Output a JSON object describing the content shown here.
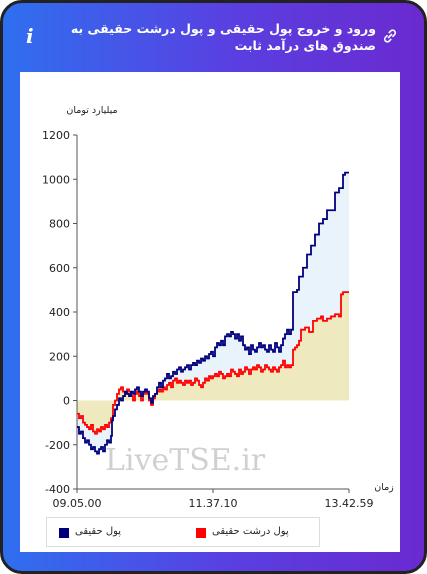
{
  "header": {
    "title": "ورود و خروج پول حقیقی و پول درشت حقیقی به صندوق های درآمد ثابت",
    "info_glyph": "i",
    "icon_left": "info-icon",
    "icon_right": "link-icon"
  },
  "colors": {
    "blue": "#00007f",
    "red": "#ff0000",
    "blue_fill": "#e8f3fb",
    "yellow_fill": "#efe8b8"
  },
  "watermark": "LiveTSE.ir",
  "chart_data": {
    "type": "line",
    "ylabel": "میلیارد تومان",
    "xlabel": "زمان",
    "ylim": [
      -400,
      1200
    ],
    "yticks": [
      -400,
      -200,
      0,
      200,
      400,
      600,
      800,
      1000,
      1200
    ],
    "xlim": [
      0,
      272
    ],
    "xticks": [
      {
        "x": 0,
        "label": "09.05.00"
      },
      {
        "x": 136,
        "label": "11.37.10"
      },
      {
        "x": 272,
        "label": "13.42.59"
      }
    ],
    "legend_position": "bottom",
    "series": [
      {
        "name": "پول حقیقی",
        "color": "#00007f",
        "points": [
          [
            0,
            -120
          ],
          [
            2,
            -150
          ],
          [
            4,
            -140
          ],
          [
            6,
            -170
          ],
          [
            8,
            -190
          ],
          [
            10,
            -180
          ],
          [
            12,
            -200
          ],
          [
            14,
            -220
          ],
          [
            16,
            -210
          ],
          [
            18,
            -230
          ],
          [
            20,
            -240
          ],
          [
            22,
            -220
          ],
          [
            24,
            -210
          ],
          [
            26,
            -230
          ],
          [
            28,
            -200
          ],
          [
            30,
            -180
          ],
          [
            32,
            -190
          ],
          [
            34,
            -160
          ],
          [
            35,
            -90
          ],
          [
            36,
            -70
          ],
          [
            38,
            -40
          ],
          [
            40,
            -20
          ],
          [
            42,
            10
          ],
          [
            44,
            0
          ],
          [
            46,
            20
          ],
          [
            48,
            40
          ],
          [
            50,
            30
          ],
          [
            52,
            20
          ],
          [
            54,
            40
          ],
          [
            56,
            30
          ],
          [
            58,
            50
          ],
          [
            60,
            60
          ],
          [
            62,
            40
          ],
          [
            64,
            20
          ],
          [
            66,
            40
          ],
          [
            68,
            50
          ],
          [
            70,
            40
          ],
          [
            72,
            10
          ],
          [
            74,
            -10
          ],
          [
            76,
            20
          ],
          [
            78,
            30
          ],
          [
            80,
            60
          ],
          [
            82,
            80
          ],
          [
            84,
            60
          ],
          [
            86,
            90
          ],
          [
            88,
            100
          ],
          [
            90,
            120
          ],
          [
            92,
            100
          ],
          [
            94,
            110
          ],
          [
            96,
            130
          ],
          [
            98,
            120
          ],
          [
            100,
            140
          ],
          [
            102,
            150
          ],
          [
            104,
            130
          ],
          [
            106,
            140
          ],
          [
            108,
            150
          ],
          [
            110,
            160
          ],
          [
            112,
            140
          ],
          [
            114,
            160
          ],
          [
            116,
            170
          ],
          [
            118,
            160
          ],
          [
            120,
            180
          ],
          [
            122,
            170
          ],
          [
            124,
            190
          ],
          [
            126,
            180
          ],
          [
            128,
            200
          ],
          [
            130,
            190
          ],
          [
            132,
            210
          ],
          [
            134,
            220
          ],
          [
            136,
            200
          ],
          [
            138,
            240
          ],
          [
            140,
            260
          ],
          [
            142,
            250
          ],
          [
            144,
            270
          ],
          [
            146,
            250
          ],
          [
            148,
            290
          ],
          [
            150,
            300
          ],
          [
            152,
            290
          ],
          [
            154,
            310
          ],
          [
            156,
            300
          ],
          [
            158,
            280
          ],
          [
            160,
            300
          ],
          [
            162,
            270
          ],
          [
            164,
            290
          ],
          [
            166,
            250
          ],
          [
            168,
            230
          ],
          [
            170,
            240
          ],
          [
            172,
            210
          ],
          [
            174,
            250
          ],
          [
            176,
            230
          ],
          [
            178,
            220
          ],
          [
            180,
            240
          ],
          [
            182,
            260
          ],
          [
            184,
            240
          ],
          [
            186,
            250
          ],
          [
            188,
            230
          ],
          [
            190,
            220
          ],
          [
            192,
            250
          ],
          [
            194,
            230
          ],
          [
            196,
            220
          ],
          [
            198,
            260
          ],
          [
            200,
            240
          ],
          [
            202,
            220
          ],
          [
            204,
            250
          ],
          [
            206,
            280
          ],
          [
            208,
            300
          ],
          [
            210,
            320
          ],
          [
            212,
            300
          ],
          [
            214,
            320
          ],
          [
            216,
            490
          ],
          [
            220,
            500
          ],
          [
            222,
            560
          ],
          [
            226,
            600
          ],
          [
            230,
            660
          ],
          [
            234,
            700
          ],
          [
            238,
            750
          ],
          [
            242,
            800
          ],
          [
            246,
            820
          ],
          [
            250,
            860
          ],
          [
            254,
            860
          ],
          [
            258,
            940
          ],
          [
            262,
            960
          ],
          [
            266,
            1020
          ],
          [
            268,
            1030
          ],
          [
            272,
            1030
          ]
        ]
      },
      {
        "name": "پول درشت حقیقی",
        "color": "#ff0000",
        "points": [
          [
            0,
            -60
          ],
          [
            2,
            -80
          ],
          [
            4,
            -70
          ],
          [
            6,
            -100
          ],
          [
            8,
            -110
          ],
          [
            10,
            -120
          ],
          [
            12,
            -130
          ],
          [
            14,
            -110
          ],
          [
            16,
            -140
          ],
          [
            18,
            -150
          ],
          [
            20,
            -130
          ],
          [
            22,
            -140
          ],
          [
            24,
            -120
          ],
          [
            26,
            -130
          ],
          [
            28,
            -110
          ],
          [
            30,
            -120
          ],
          [
            32,
            -100
          ],
          [
            34,
            -80
          ],
          [
            36,
            -20
          ],
          [
            38,
            0
          ],
          [
            40,
            30
          ],
          [
            42,
            50
          ],
          [
            44,
            60
          ],
          [
            46,
            40
          ],
          [
            48,
            30
          ],
          [
            50,
            50
          ],
          [
            52,
            40
          ],
          [
            54,
            20
          ],
          [
            56,
            0
          ],
          [
            58,
            30
          ],
          [
            60,
            40
          ],
          [
            62,
            20
          ],
          [
            64,
            0
          ],
          [
            66,
            30
          ],
          [
            68,
            40
          ],
          [
            70,
            30
          ],
          [
            72,
            0
          ],
          [
            74,
            -20
          ],
          [
            76,
            10
          ],
          [
            78,
            30
          ],
          [
            80,
            40
          ],
          [
            82,
            50
          ],
          [
            84,
            40
          ],
          [
            86,
            60
          ],
          [
            88,
            50
          ],
          [
            90,
            70
          ],
          [
            92,
            80
          ],
          [
            94,
            60
          ],
          [
            96,
            90
          ],
          [
            98,
            100
          ],
          [
            100,
            80
          ],
          [
            102,
            90
          ],
          [
            104,
            80
          ],
          [
            106,
            70
          ],
          [
            108,
            90
          ],
          [
            110,
            80
          ],
          [
            112,
            90
          ],
          [
            114,
            70
          ],
          [
            116,
            80
          ],
          [
            118,
            100
          ],
          [
            120,
            90
          ],
          [
            122,
            70
          ],
          [
            124,
            60
          ],
          [
            126,
            80
          ],
          [
            128,
            100
          ],
          [
            130,
            90
          ],
          [
            132,
            110
          ],
          [
            134,
            100
          ],
          [
            136,
            110
          ],
          [
            138,
            120
          ],
          [
            140,
            110
          ],
          [
            142,
            130
          ],
          [
            144,
            120
          ],
          [
            146,
            100
          ],
          [
            148,
            110
          ],
          [
            150,
            120
          ],
          [
            152,
            110
          ],
          [
            154,
            140
          ],
          [
            156,
            130
          ],
          [
            158,
            120
          ],
          [
            160,
            110
          ],
          [
            162,
            140
          ],
          [
            164,
            120
          ],
          [
            166,
            130
          ],
          [
            168,
            150
          ],
          [
            170,
            140
          ],
          [
            172,
            120
          ],
          [
            174,
            140
          ],
          [
            176,
            150
          ],
          [
            178,
            140
          ],
          [
            180,
            160
          ],
          [
            182,
            150
          ],
          [
            184,
            130
          ],
          [
            186,
            140
          ],
          [
            188,
            160
          ],
          [
            190,
            150
          ],
          [
            192,
            140
          ],
          [
            194,
            130
          ],
          [
            196,
            150
          ],
          [
            198,
            140
          ],
          [
            200,
            130
          ],
          [
            202,
            150
          ],
          [
            204,
            160
          ],
          [
            206,
            180
          ],
          [
            208,
            150
          ],
          [
            210,
            160
          ],
          [
            212,
            150
          ],
          [
            214,
            160
          ],
          [
            216,
            230
          ],
          [
            218,
            240
          ],
          [
            220,
            250
          ],
          [
            222,
            270
          ],
          [
            224,
            320
          ],
          [
            228,
            330
          ],
          [
            232,
            310
          ],
          [
            236,
            360
          ],
          [
            240,
            370
          ],
          [
            244,
            380
          ],
          [
            246,
            360
          ],
          [
            250,
            370
          ],
          [
            254,
            380
          ],
          [
            258,
            390
          ],
          [
            262,
            380
          ],
          [
            264,
            480
          ],
          [
            266,
            490
          ],
          [
            272,
            490
          ]
        ]
      }
    ]
  }
}
